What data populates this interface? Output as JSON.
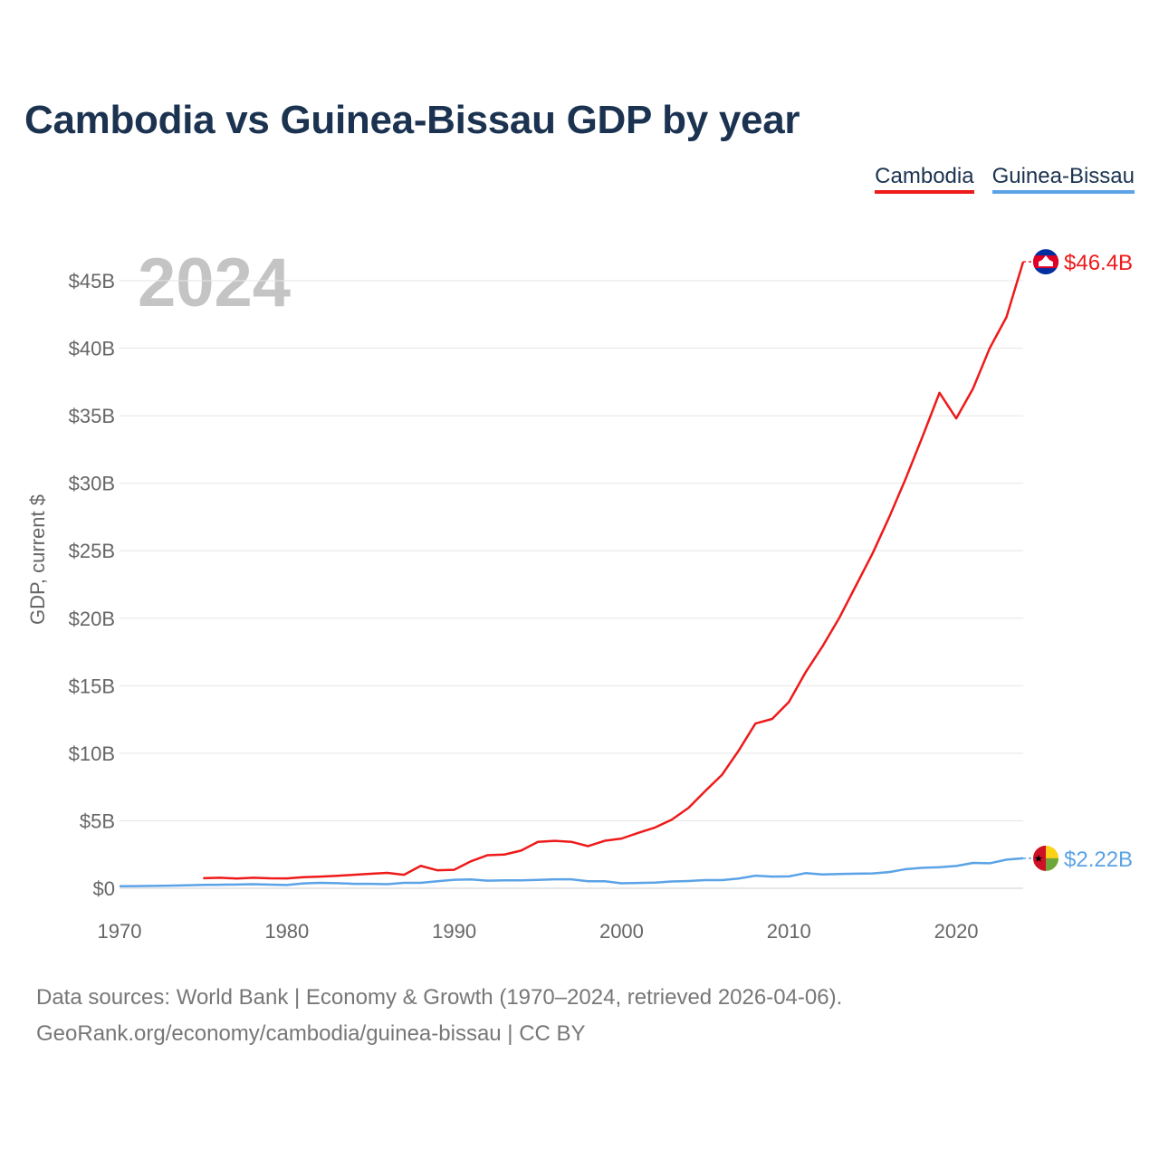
{
  "title": "Cambodia vs Guinea-Bissau GDP by year",
  "legend": {
    "cambodia": "Cambodia",
    "guinea_bissau": "Guinea-Bissau"
  },
  "colors": {
    "cambodia": "#ee1a1a",
    "guinea_bissau": "#5ba3e6",
    "title": "#1b3350",
    "axis_text": "#666666",
    "year_watermark": "#c4c4c4"
  },
  "footer": {
    "sources": "Data sources: World Bank | Economy & Growth (1970–2024, retrieved 2026-04-06).",
    "credit": "GeoRank.org/economy/cambodia/guinea-bissau | CC BY"
  },
  "chart_data": {
    "type": "line",
    "title": "Cambodia vs Guinea-Bissau GDP by year",
    "year_watermark": "2024",
    "xlabel": "",
    "ylabel": "GDP, current $",
    "xlim": [
      1970,
      2024
    ],
    "ylim": [
      0,
      48
    ],
    "x_ticks": [
      1970,
      1980,
      1990,
      2000,
      2010,
      2020
    ],
    "y_ticks": [
      {
        "value": 0,
        "label": "$0"
      },
      {
        "value": 5,
        "label": "$5B"
      },
      {
        "value": 10,
        "label": "$10B"
      },
      {
        "value": 15,
        "label": "$15B"
      },
      {
        "value": 20,
        "label": "$20B"
      },
      {
        "value": 25,
        "label": "$25B"
      },
      {
        "value": 30,
        "label": "$30B"
      },
      {
        "value": 35,
        "label": "$35B"
      },
      {
        "value": 40,
        "label": "$40B"
      },
      {
        "value": 45,
        "label": "$45B"
      }
    ],
    "grid": true,
    "series": [
      {
        "name": "Cambodia",
        "key": "cambodia",
        "end_label": "$46.4B",
        "flag": "cambodia-flag",
        "x": [
          1975,
          1976,
          1977,
          1978,
          1979,
          1980,
          1981,
          1982,
          1983,
          1984,
          1985,
          1986,
          1987,
          1988,
          1989,
          1990,
          1991,
          1992,
          1993,
          1994,
          1995,
          1996,
          1997,
          1998,
          1999,
          2000,
          2001,
          2002,
          2003,
          2004,
          2005,
          2006,
          2007,
          2008,
          2009,
          2010,
          2011,
          2012,
          2013,
          2014,
          2015,
          2016,
          2017,
          2018,
          2019,
          2020,
          2021,
          2022,
          2023,
          2024
        ],
        "values": [
          0.75,
          0.78,
          0.72,
          0.78,
          0.74,
          0.73,
          0.82,
          0.86,
          0.92,
          1.0,
          1.07,
          1.14,
          1.0,
          1.66,
          1.33,
          1.37,
          2.0,
          2.45,
          2.5,
          2.79,
          3.44,
          3.51,
          3.44,
          3.12,
          3.52,
          3.68,
          4.1,
          4.5,
          5.08,
          5.95,
          7.2,
          8.4,
          10.2,
          12.2,
          12.54,
          13.8,
          16.0,
          17.9,
          20.0,
          22.4,
          24.8,
          27.5,
          30.4,
          33.5,
          36.7,
          34.8,
          37.0,
          40.0,
          42.3,
          46.4
        ]
      },
      {
        "name": "Guinea-Bissau",
        "key": "guinea_bissau",
        "end_label": "$2.22B",
        "flag": "guinea-bissau-flag",
        "x": [
          1970,
          1971,
          1972,
          1973,
          1974,
          1975,
          1976,
          1977,
          1978,
          1979,
          1980,
          1981,
          1982,
          1983,
          1984,
          1985,
          1986,
          1987,
          1988,
          1989,
          1990,
          1991,
          1992,
          1993,
          1994,
          1995,
          1996,
          1997,
          1998,
          1999,
          2000,
          2001,
          2002,
          2003,
          2004,
          2005,
          2006,
          2007,
          2008,
          2009,
          2010,
          2011,
          2012,
          2013,
          2014,
          2015,
          2016,
          2017,
          2018,
          2019,
          2020,
          2021,
          2022,
          2023,
          2024
        ],
        "values": [
          0.15,
          0.16,
          0.18,
          0.19,
          0.22,
          0.25,
          0.26,
          0.28,
          0.3,
          0.27,
          0.24,
          0.36,
          0.4,
          0.38,
          0.33,
          0.33,
          0.3,
          0.4,
          0.4,
          0.52,
          0.63,
          0.65,
          0.56,
          0.59,
          0.59,
          0.62,
          0.66,
          0.66,
          0.52,
          0.52,
          0.37,
          0.39,
          0.42,
          0.5,
          0.54,
          0.6,
          0.6,
          0.72,
          0.93,
          0.86,
          0.88,
          1.12,
          1.02,
          1.06,
          1.08,
          1.1,
          1.2,
          1.42,
          1.52,
          1.56,
          1.65,
          1.88,
          1.85,
          2.12,
          2.22
        ]
      }
    ]
  }
}
